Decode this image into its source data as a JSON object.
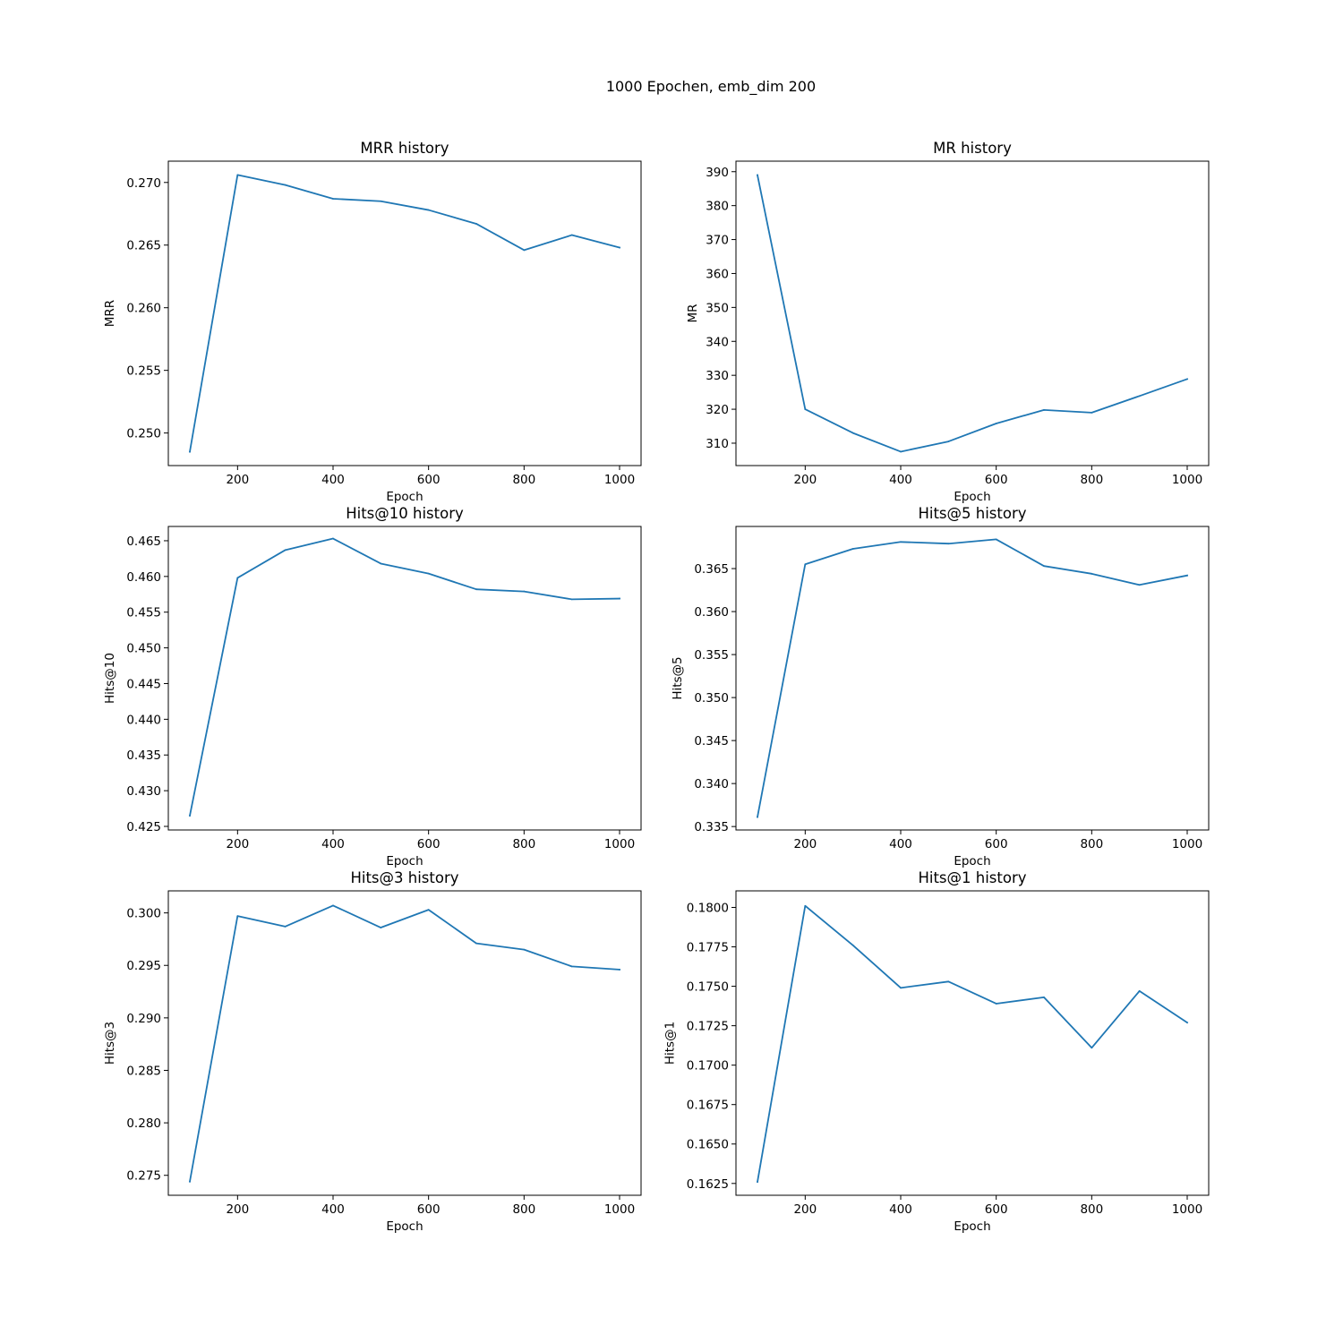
{
  "figure": {
    "suptitle": "1000 Epochen, emb_dim 200",
    "line_color": "#1f77b4"
  },
  "chart_data": [
    {
      "type": "line",
      "title": "MRR history",
      "xlabel": "Epoch",
      "ylabel": "MRR",
      "x": [
        100,
        200,
        300,
        400,
        500,
        600,
        700,
        800,
        900,
        1000
      ],
      "y": [
        0.2485,
        0.2706,
        0.2698,
        0.2687,
        0.2685,
        0.2678,
        0.2667,
        0.2646,
        0.2658,
        0.2648
      ],
      "xlim": [
        55,
        1045
      ],
      "ylim": [
        0.2474,
        0.2717
      ],
      "xticks": [
        200,
        400,
        600,
        800,
        1000
      ],
      "xtick_labels": [
        "200",
        "400",
        "600",
        "800",
        "1000"
      ],
      "yticks": [
        0.25,
        0.255,
        0.26,
        0.265,
        0.27
      ],
      "ytick_labels": [
        "0.250",
        "0.255",
        "0.260",
        "0.265",
        "0.270"
      ],
      "grid": false
    },
    {
      "type": "line",
      "title": "MR history",
      "xlabel": "Epoch",
      "ylabel": "MR",
      "x": [
        100,
        200,
        300,
        400,
        500,
        600,
        700,
        800,
        900,
        1000
      ],
      "y": [
        389,
        320,
        313,
        307.5,
        310.5,
        315.8,
        319.8,
        319,
        323.9,
        328.9
      ],
      "xlim": [
        55,
        1045
      ],
      "ylim": [
        303.4,
        393.1
      ],
      "xticks": [
        200,
        400,
        600,
        800,
        1000
      ],
      "xtick_labels": [
        "200",
        "400",
        "600",
        "800",
        "1000"
      ],
      "yticks": [
        310,
        320,
        330,
        340,
        350,
        360,
        370,
        380,
        390
      ],
      "ytick_labels": [
        "310",
        "320",
        "330",
        "340",
        "350",
        "360",
        "370",
        "380",
        "390"
      ],
      "grid": false
    },
    {
      "type": "line",
      "title": "Hits@10 history",
      "xlabel": "Epoch",
      "ylabel": "Hits@10",
      "x": [
        100,
        200,
        300,
        400,
        500,
        600,
        700,
        800,
        900,
        1000
      ],
      "y": [
        0.4265,
        0.4598,
        0.4637,
        0.4653,
        0.4618,
        0.4604,
        0.4582,
        0.4579,
        0.4568,
        0.4569
      ],
      "xlim": [
        55,
        1045
      ],
      "ylim": [
        0.4245,
        0.467
      ],
      "xticks": [
        200,
        400,
        600,
        800,
        1000
      ],
      "xtick_labels": [
        "200",
        "400",
        "600",
        "800",
        "1000"
      ],
      "yticks": [
        0.425,
        0.43,
        0.435,
        0.44,
        0.445,
        0.45,
        0.455,
        0.46,
        0.465
      ],
      "ytick_labels": [
        "0.425",
        "0.430",
        "0.435",
        "0.440",
        "0.445",
        "0.450",
        "0.455",
        "0.460",
        "0.465"
      ],
      "grid": false
    },
    {
      "type": "line",
      "title": "Hits@5 history",
      "xlabel": "Epoch",
      "ylabel": "Hits@5",
      "x": [
        100,
        200,
        300,
        400,
        500,
        600,
        700,
        800,
        900,
        1000
      ],
      "y": [
        0.3361,
        0.3655,
        0.3673,
        0.3681,
        0.3679,
        0.3684,
        0.3653,
        0.3644,
        0.3631,
        0.3642
      ],
      "xlim": [
        55,
        1045
      ],
      "ylim": [
        0.3346,
        0.3699
      ],
      "xticks": [
        200,
        400,
        600,
        800,
        1000
      ],
      "xtick_labels": [
        "200",
        "400",
        "600",
        "800",
        "1000"
      ],
      "yticks": [
        0.335,
        0.34,
        0.345,
        0.35,
        0.355,
        0.36,
        0.365
      ],
      "ytick_labels": [
        "0.335",
        "0.340",
        "0.345",
        "0.350",
        "0.355",
        "0.360",
        "0.365"
      ],
      "grid": false
    },
    {
      "type": "line",
      "title": "Hits@3 history",
      "xlabel": "Epoch",
      "ylabel": "Hits@3",
      "x": [
        100,
        200,
        300,
        400,
        500,
        600,
        700,
        800,
        900,
        1000
      ],
      "y": [
        0.2744,
        0.2997,
        0.2987,
        0.3007,
        0.2986,
        0.3003,
        0.2971,
        0.2965,
        0.2949,
        0.2946
      ],
      "xlim": [
        55,
        1045
      ],
      "ylim": [
        0.2731,
        0.3021
      ],
      "xticks": [
        200,
        400,
        600,
        800,
        1000
      ],
      "xtick_labels": [
        "200",
        "400",
        "600",
        "800",
        "1000"
      ],
      "yticks": [
        0.275,
        0.28,
        0.285,
        0.29,
        0.295,
        0.3
      ],
      "ytick_labels": [
        "0.275",
        "0.280",
        "0.285",
        "0.290",
        "0.295",
        "0.300"
      ],
      "grid": false
    },
    {
      "type": "line",
      "title": "Hits@1 history",
      "xlabel": "Epoch",
      "ylabel": "Hits@1",
      "x": [
        100,
        200,
        300,
        400,
        500,
        600,
        700,
        800,
        900,
        1000
      ],
      "y": [
        0.1626,
        0.1801,
        0.1776,
        0.1749,
        0.1753,
        0.1739,
        0.1743,
        0.1711,
        0.1747,
        0.1727
      ],
      "xlim": [
        55,
        1045
      ],
      "ylim": [
        0.16175,
        0.18105
      ],
      "xticks": [
        200,
        400,
        600,
        800,
        1000
      ],
      "xtick_labels": [
        "200",
        "400",
        "600",
        "800",
        "1000"
      ],
      "yticks": [
        0.1625,
        0.165,
        0.1675,
        0.17,
        0.1725,
        0.175,
        0.1775,
        0.18
      ],
      "ytick_labels": [
        "0.1625",
        "0.1650",
        "0.1675",
        "0.1700",
        "0.1725",
        "0.1750",
        "0.1775",
        "0.1800"
      ],
      "grid": false
    }
  ]
}
